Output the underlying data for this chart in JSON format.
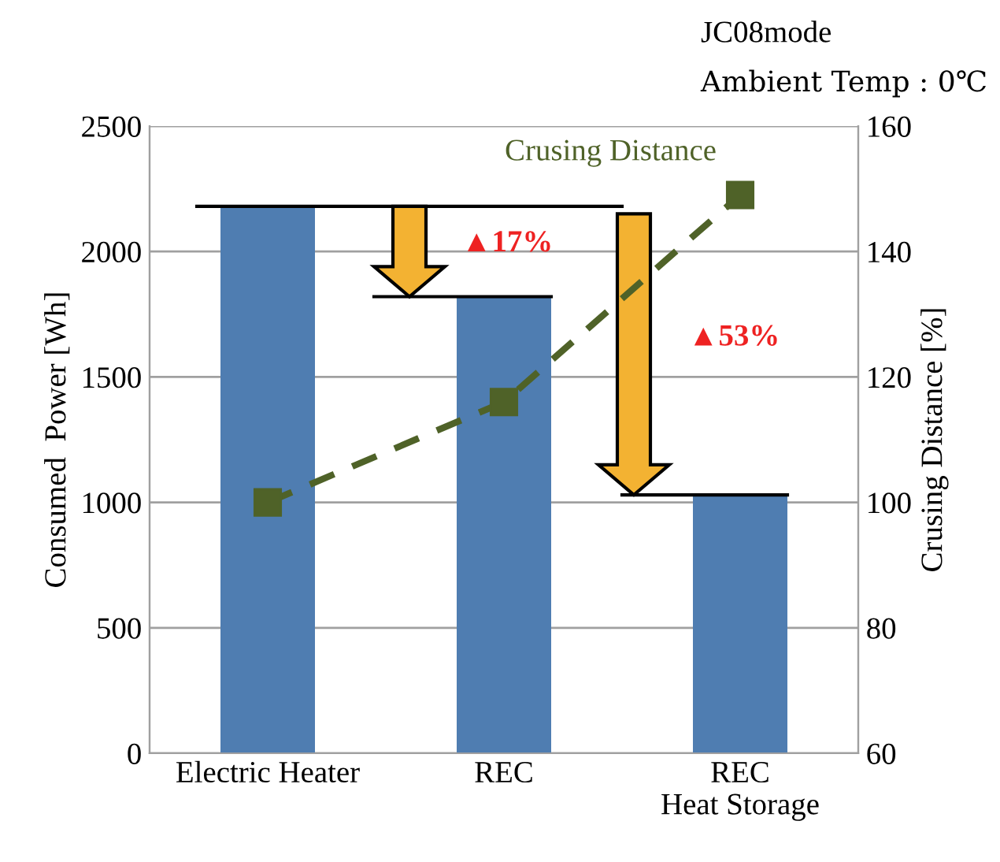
{
  "chart_data": {
    "type": "bar",
    "categories": [
      "Electric Heater",
      "REC",
      "REC\nHeat Storage"
    ],
    "ylabel": "Consumed  Power [Wh]",
    "y2label": "Crusing Distance [%]",
    "series": [
      {
        "color": "#4f7db1",
        "values": [
          2180,
          1820,
          1030
        ]
      },
      {
        "type": "line",
        "name": "Crusing Distance",
        "axis": "y2",
        "color": "#4f6228",
        "values": [
          100,
          116,
          149
        ],
        "marker": "square",
        "line_style": "dashed"
      }
    ],
    "ylim": [
      0,
      2500
    ],
    "yticks": [
      0,
      500,
      1000,
      1500,
      2000,
      2500
    ],
    "y2lim": [
      60,
      160
    ],
    "y2ticks": [
      60,
      80,
      100,
      120,
      140,
      160
    ],
    "grid": "y",
    "legend": false,
    "annotations": [
      "JC08mode",
      "Ambient Temp : 0℃",
      "▲17%",
      "▲53%"
    ]
  }
}
